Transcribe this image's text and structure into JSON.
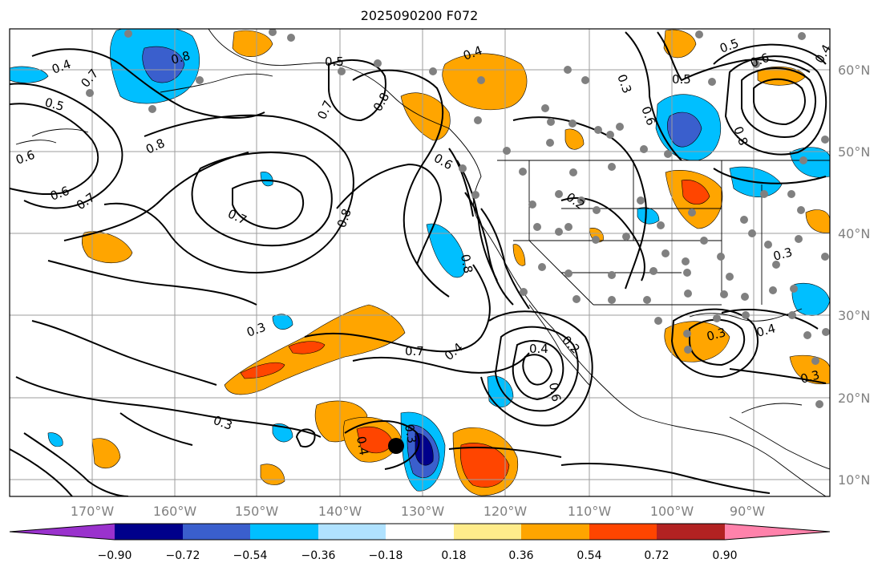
{
  "map": {
    "title": "2025090200 F072",
    "lon_labels": [
      "170°W",
      "160°W",
      "150°W",
      "140°W",
      "130°W",
      "120°W",
      "110°W",
      "100°W",
      "90°W"
    ],
    "lat_labels": [
      "60°N",
      "50°N",
      "40°N",
      "30°N",
      "20°N",
      "10°N"
    ],
    "contour_labels": [
      "0.4",
      "0.5",
      "0.8",
      "0.8",
      "0.5",
      "0.6",
      "0.6",
      "0.4",
      "0.7",
      "0.7",
      "0.8",
      "0.7",
      "0.6",
      "0.7",
      "0.8",
      "0.3",
      "0.7",
      "0.4",
      "0.3",
      "0.8",
      "0.6",
      "0.2",
      "0.4",
      "0.6",
      "0.3",
      "0.4",
      "0.3",
      "0.5",
      "0.6",
      "0.4",
      "0.3",
      "0.8",
      "0.5",
      "0.3",
      "0.4",
      "0.3",
      "0.2"
    ],
    "marker": "storm-center"
  },
  "colorbar": {
    "ticks": [
      "−0.90",
      "−0.72",
      "−0.54",
      "−0.36",
      "−0.18",
      "0.18",
      "0.36",
      "0.54",
      "0.72",
      "0.90"
    ],
    "colors": [
      "#9a32cd",
      "#00008b",
      "#3a5fcd",
      "#00bfff",
      "#b0e2ff",
      "#ffffff",
      "#ffec8b",
      "#ffa500",
      "#ff4500",
      "#b22222",
      "#ff82ab"
    ]
  }
}
